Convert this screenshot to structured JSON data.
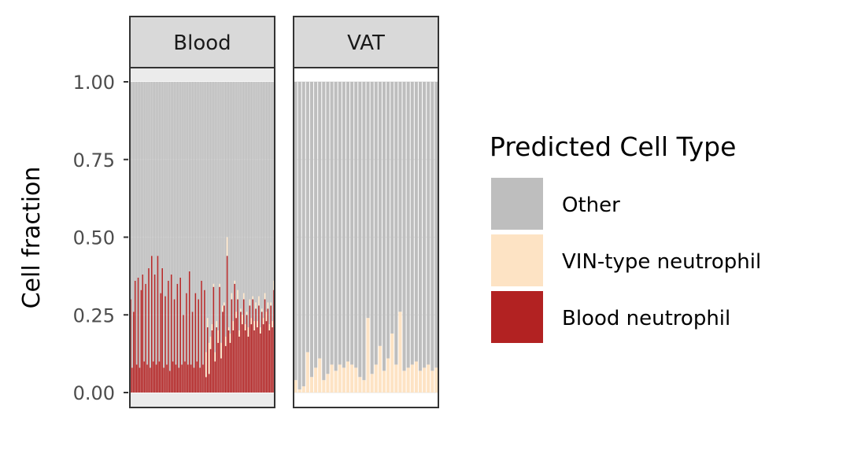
{
  "chart_data": {
    "type": "bar",
    "stacked": true,
    "ylabel": "Cell fraction",
    "xlabel": "",
    "ylim": [
      0,
      1
    ],
    "yticks": [
      "0.00",
      "0.25",
      "0.50",
      "0.75",
      "1.00"
    ],
    "legend": {
      "title": "Predicted Cell Type",
      "placement": "right",
      "entries": [
        {
          "label": "Other",
          "color": "#bebebe"
        },
        {
          "label": "VIN-type neutrophil",
          "color": "#fde3c4"
        },
        {
          "label": "Blood neutrophil",
          "color": "#b22222"
        }
      ]
    },
    "panels": [
      {
        "label": "Blood",
        "background": "#ebebeb",
        "series": [
          {
            "name": "Blood neutrophil",
            "values": [
              0.3,
              0.08,
              0.26,
              0.36,
              0.09,
              0.37,
              0.08,
              0.33,
              0.38,
              0.1,
              0.35,
              0.09,
              0.4,
              0.08,
              0.44,
              0.1,
              0.38,
              0.09,
              0.44,
              0.1,
              0.32,
              0.4,
              0.08,
              0.31,
              0.09,
              0.36,
              0.07,
              0.38,
              0.1,
              0.3,
              0.09,
              0.35,
              0.08,
              0.37,
              0.09,
              0.25,
              0.1,
              0.32,
              0.09,
              0.39,
              0.09,
              0.26,
              0.08,
              0.32,
              0.1,
              0.3,
              0.08,
              0.36,
              0.09,
              0.33,
              0.05,
              0.21,
              0.06,
              0.14,
              0.2,
              0.34,
              0.1,
              0.21,
              0.16,
              0.34,
              0.11,
              0.26,
              0.28,
              0.15,
              0.44,
              0.2,
              0.16,
              0.3,
              0.2,
              0.35,
              0.24,
              0.3,
              0.18,
              0.26,
              0.22,
              0.3,
              0.2,
              0.25,
              0.18,
              0.28,
              0.22,
              0.3,
              0.2,
              0.27,
              0.21,
              0.28,
              0.19,
              0.26,
              0.22,
              0.3,
              0.23,
              0.27,
              0.2,
              0.28,
              0.21,
              0.33
            ]
          },
          {
            "name": "VIN-type neutrophil",
            "values": [
              0.0,
              0.0,
              0.0,
              0.0,
              0.0,
              0.0,
              0.0,
              0.0,
              0.0,
              0.0,
              0.0,
              0.0,
              0.0,
              0.0,
              0.0,
              0.0,
              0.0,
              0.0,
              0.0,
              0.0,
              0.0,
              0.0,
              0.0,
              0.0,
              0.0,
              0.0,
              0.0,
              0.0,
              0.0,
              0.0,
              0.0,
              0.0,
              0.0,
              0.0,
              0.0,
              0.0,
              0.0,
              0.0,
              0.0,
              0.0,
              0.0,
              0.0,
              0.0,
              0.0,
              0.0,
              0.0,
              0.0,
              0.0,
              0.0,
              0.0,
              0.08,
              0.03,
              0.1,
              0.04,
              0.02,
              0.01,
              0.03,
              0.02,
              0.04,
              0.01,
              0.05,
              0.02,
              0.01,
              0.03,
              0.06,
              0.01,
              0.03,
              0.02,
              0.03,
              0.01,
              0.02,
              0.03,
              0.02,
              0.01,
              0.03,
              0.02,
              0.02,
              0.01,
              0.03,
              0.02,
              0.02,
              0.01,
              0.03,
              0.02,
              0.02,
              0.03,
              0.02,
              0.01,
              0.02,
              0.02,
              0.03,
              0.02,
              0.02,
              0.01,
              0.02,
              0.03
            ]
          },
          {
            "name": "Other",
            "values": [
              0.7,
              0.92,
              0.74,
              0.64,
              0.91,
              0.63,
              0.92,
              0.67,
              0.62,
              0.9,
              0.65,
              0.91,
              0.6,
              0.92,
              0.56,
              0.9,
              0.62,
              0.91,
              0.56,
              0.9,
              0.68,
              0.6,
              0.92,
              0.69,
              0.91,
              0.64,
              0.93,
              0.62,
              0.9,
              0.7,
              0.91,
              0.65,
              0.92,
              0.63,
              0.91,
              0.75,
              0.9,
              0.68,
              0.91,
              0.61,
              0.91,
              0.74,
              0.92,
              0.68,
              0.9,
              0.7,
              0.92,
              0.64,
              0.91,
              0.67,
              0.87,
              0.76,
              0.84,
              0.82,
              0.78,
              0.65,
              0.87,
              0.77,
              0.8,
              0.65,
              0.84,
              0.72,
              0.71,
              0.82,
              0.5,
              0.79,
              0.81,
              0.68,
              0.77,
              0.64,
              0.74,
              0.67,
              0.8,
              0.73,
              0.75,
              0.68,
              0.78,
              0.74,
              0.79,
              0.7,
              0.76,
              0.69,
              0.77,
              0.71,
              0.77,
              0.69,
              0.79,
              0.73,
              0.76,
              0.68,
              0.74,
              0.71,
              0.78,
              0.71,
              0.77,
              0.64
            ]
          }
        ]
      },
      {
        "label": "VAT",
        "background": "#ffffff",
        "series": [
          {
            "name": "Blood neutrophil",
            "values": [
              0,
              0,
              0,
              0,
              0,
              0,
              0,
              0,
              0,
              0,
              0,
              0,
              0,
              0,
              0,
              0,
              0,
              0,
              0,
              0,
              0,
              0,
              0,
              0,
              0,
              0,
              0,
              0,
              0,
              0,
              0,
              0,
              0,
              0,
              0,
              0
            ]
          },
          {
            "name": "VIN-type neutrophil",
            "values": [
              0.04,
              0.01,
              0.02,
              0.13,
              0.05,
              0.08,
              0.11,
              0.04,
              0.06,
              0.09,
              0.07,
              0.09,
              0.08,
              0.1,
              0.09,
              0.08,
              0.05,
              0.04,
              0.24,
              0.06,
              0.09,
              0.15,
              0.07,
              0.11,
              0.19,
              0.09,
              0.26,
              0.07,
              0.08,
              0.09,
              0.1,
              0.07,
              0.08,
              0.09,
              0.07,
              0.08
            ]
          },
          {
            "name": "Other",
            "values": [
              0.96,
              0.99,
              0.98,
              0.87,
              0.95,
              0.92,
              0.89,
              0.96,
              0.94,
              0.91,
              0.93,
              0.91,
              0.92,
              0.9,
              0.91,
              0.92,
              0.95,
              0.96,
              0.76,
              0.94,
              0.91,
              0.85,
              0.93,
              0.89,
              0.81,
              0.91,
              0.74,
              0.93,
              0.92,
              0.91,
              0.9,
              0.93,
              0.92,
              0.91,
              0.93,
              0.92
            ]
          }
        ]
      }
    ]
  }
}
